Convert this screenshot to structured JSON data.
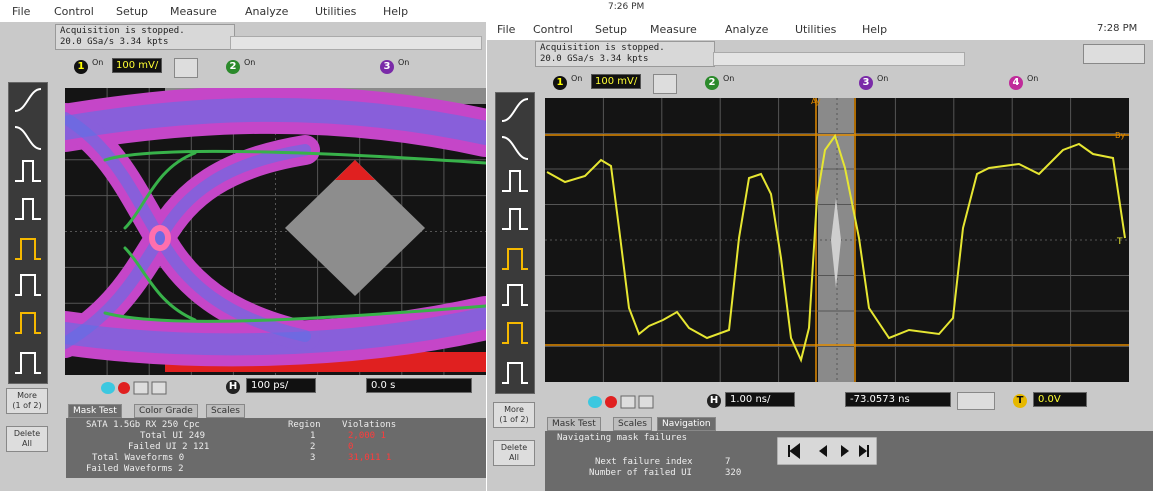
{
  "left_window": {
    "menu": [
      "File",
      "Control",
      "Setup",
      "Measure",
      "Analyze",
      "Utilities",
      "Help"
    ],
    "clock": "7:26 PM",
    "status": [
      "Acquisition is stopped.",
      "20.0 GSa/s   3.34 kpts"
    ],
    "channels": [
      {
        "number": "1",
        "state": "On",
        "scale": "100 mV/"
      },
      {
        "number": "2",
        "state": "On"
      },
      {
        "number": "3",
        "state": "On"
      }
    ],
    "side_buttons": [
      [
        "More",
        "(1 of 2)"
      ],
      [
        "Delete",
        "All"
      ]
    ],
    "timebase": {
      "label": "H",
      "scale": "100 ps/",
      "position": "0.0 s"
    },
    "tabs": [
      "Mask Test",
      "Color Grade",
      "Scales"
    ],
    "mask_test": {
      "lines": [
        "SATA 1.5Gb RX 250 Cpc",
        "Total UI  249",
        "Failed UI  2 121",
        "Total Waveforms  0",
        "Failed Waveforms  2"
      ],
      "table": {
        "headers": [
          "Region",
          "Violations"
        ],
        "rows": [
          [
            "1",
            "2,000 1"
          ],
          [
            "2",
            "0"
          ],
          [
            "3",
            "31,011 1"
          ]
        ]
      }
    }
  },
  "right_window": {
    "menu": [
      "File",
      "Control",
      "Setup",
      "Measure",
      "Analyze",
      "Utilities",
      "Help"
    ],
    "clock": "7:28 PM",
    "status": [
      "Acquisition is stopped.",
      "20.0 GSa/s   3.34 kpts"
    ],
    "channels": [
      {
        "number": "1",
        "state": "On",
        "scale": "100 mV/"
      },
      {
        "number": "2",
        "state": "On"
      },
      {
        "number": "3",
        "state": "On"
      },
      {
        "number": "4",
        "state": "On"
      }
    ],
    "markers": [
      "Ay",
      "By",
      "T"
    ],
    "side_buttons": [
      [
        "More",
        "(1 of 2)"
      ],
      [
        "Delete",
        "All"
      ]
    ],
    "timebase": {
      "label": "H",
      "scale": "1.00 ns/",
      "position": "-73.0573 ns"
    },
    "trigger": {
      "label": "T",
      "level": "0.0V"
    },
    "tabs": [
      "Mask Test",
      "Scales",
      "Navigation"
    ],
    "navigation": {
      "title": "Navigating mask failures",
      "lines": [
        [
          "Next failure index",
          "7"
        ],
        [
          "Number of failed UI",
          "320"
        ]
      ]
    }
  }
}
